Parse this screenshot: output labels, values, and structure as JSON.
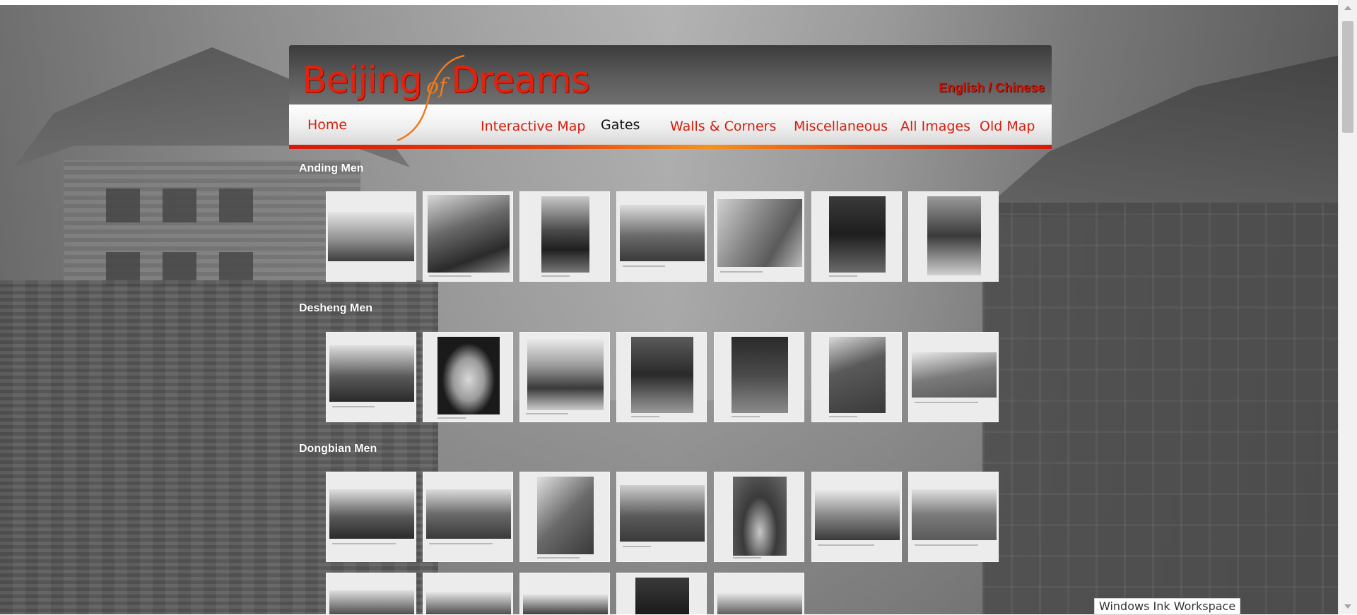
{
  "header": {
    "logo_part1": "Beijing",
    "logo_part2": "of",
    "logo_part3": "Dreams",
    "language_links": "English / Chinese"
  },
  "nav": {
    "items": [
      {
        "label": "Home"
      },
      {
        "label": "Interactive Map"
      },
      {
        "label": "Gates",
        "active": true
      },
      {
        "label": "Walls & Corners"
      },
      {
        "label": "Miscellaneous"
      },
      {
        "label": "All Images"
      },
      {
        "label": "Old Map"
      }
    ]
  },
  "sections": [
    {
      "title": "Anding Men",
      "thumbnail_count": 7
    },
    {
      "title": "Desheng Men",
      "thumbnail_count": 7
    },
    {
      "title": "Dongbian Men",
      "thumbnail_count": 12
    }
  ],
  "tooltip": {
    "text": "Windows Ink Workspace"
  },
  "colors": {
    "accent_red": "#d71d0c",
    "accent_orange": "#f39221",
    "header_dark": "#3c3c3c"
  }
}
